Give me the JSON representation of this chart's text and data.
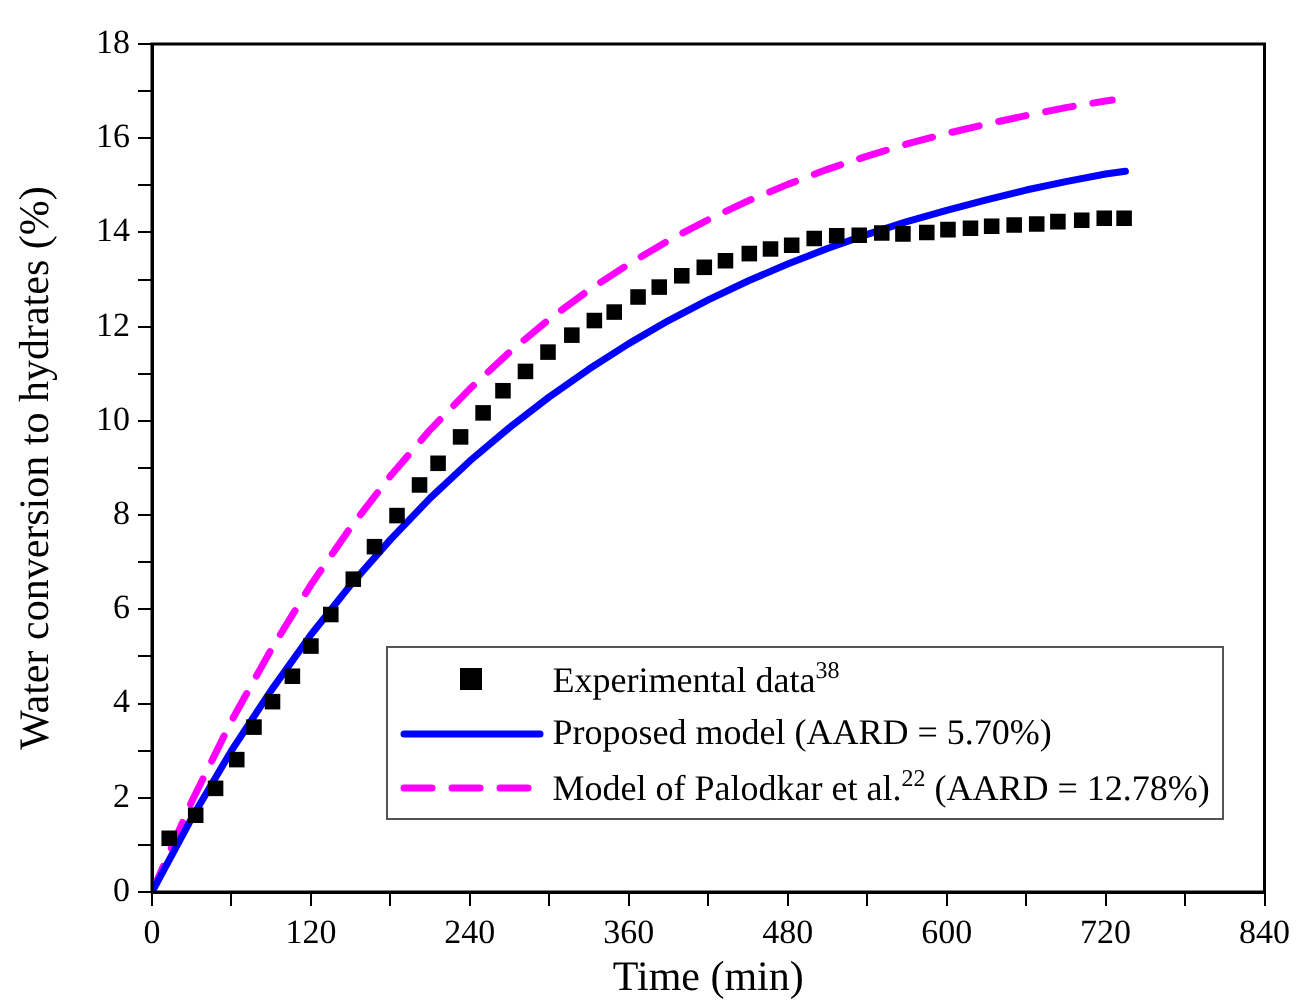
{
  "chart_data": {
    "type": "line",
    "xlabel": "Time (min)",
    "ylabel": "Water conversion to hydrates (%)",
    "xlim": [
      0,
      840
    ],
    "ylim": [
      0,
      18
    ],
    "xticks": [
      0,
      {
        "value": 60,
        "label": null
      },
      120,
      {
        "value": 180,
        "label": null
      },
      240,
      {
        "value": 300,
        "label": null
      },
      360,
      {
        "value": 420,
        "label": null
      },
      480,
      {
        "value": 540,
        "label": null
      },
      600,
      {
        "value": 660,
        "label": null
      },
      720,
      {
        "value": 780,
        "label": null
      },
      840
    ],
    "yticks": [
      0,
      {
        "value": 1,
        "label": null
      },
      2,
      {
        "value": 3,
        "label": null
      },
      4,
      {
        "value": 5,
        "label": null
      },
      6,
      {
        "value": 7,
        "label": null
      },
      8,
      {
        "value": 9,
        "label": null
      },
      10,
      {
        "value": 11,
        "label": null
      },
      12,
      {
        "value": 13,
        "label": null
      },
      14,
      {
        "value": 15,
        "label": null
      },
      16,
      {
        "value": 17,
        "label": null
      },
      18
    ],
    "grid": false,
    "legend": "bottom right",
    "series": [
      {
        "name": "Experimental data$^{38}$",
        "type": "scatter",
        "marker": "square",
        "color": "#000000",
        "x": [
          13,
          33,
          48,
          64,
          77,
          91,
          106,
          120,
          135,
          152,
          168,
          185,
          202,
          216,
          233,
          250,
          265,
          282,
          299,
          317,
          334,
          349,
          367,
          383,
          400,
          417,
          433,
          451,
          467,
          483,
          500,
          517,
          534,
          551,
          567,
          585,
          601,
          618,
          634,
          651,
          668,
          684,
          702,
          719,
          734
        ],
        "values": [
          1.14,
          1.63,
          2.2,
          2.81,
          3.5,
          4.04,
          4.58,
          5.22,
          5.89,
          6.64,
          7.33,
          7.99,
          8.64,
          9.1,
          9.66,
          10.17,
          10.64,
          11.05,
          11.46,
          11.82,
          12.13,
          12.31,
          12.63,
          12.84,
          13.08,
          13.26,
          13.4,
          13.55,
          13.65,
          13.73,
          13.87,
          13.93,
          13.94,
          13.99,
          13.97,
          14.0,
          14.06,
          14.09,
          14.13,
          14.16,
          14.18,
          14.23,
          14.26,
          14.3,
          14.3
        ]
      },
      {
        "name": "Proposed model (AARD = 5.70%)",
        "marker": "none",
        "line_style": "solid",
        "color": "#0000ff",
        "x": [
          0,
          30,
          60,
          90,
          120,
          150,
          180,
          210,
          240,
          270,
          300,
          330,
          360,
          390,
          420,
          450,
          480,
          510,
          540,
          570,
          600,
          630,
          660,
          690,
          720,
          735
        ],
        "values": [
          0,
          1.57,
          3.0,
          4.28,
          5.46,
          6.52,
          7.48,
          8.36,
          9.15,
          9.86,
          10.51,
          11.1,
          11.64,
          12.13,
          12.57,
          12.97,
          13.33,
          13.66,
          13.96,
          14.23,
          14.47,
          14.69,
          14.9,
          15.08,
          15.24,
          15.3
        ]
      },
      {
        "name": "Model of Palodkar et al.$^{22}$ (AARD = 12.78%)",
        "marker": "none",
        "line_style": "dashed",
        "color": "#ff00ff",
        "x": [
          0,
          30,
          60,
          90,
          120,
          150,
          180,
          210,
          240,
          270,
          300,
          330,
          360,
          390,
          420,
          450,
          480,
          510,
          540,
          570,
          600,
          630,
          660,
          690,
          720,
          725
        ],
        "values": [
          0,
          1.92,
          3.63,
          5.15,
          6.52,
          7.74,
          8.83,
          9.81,
          10.68,
          11.46,
          12.16,
          12.78,
          13.33,
          13.83,
          14.27,
          14.67,
          15.02,
          15.34,
          15.62,
          15.88,
          16.1,
          16.3,
          16.48,
          16.65,
          16.79,
          16.81
        ]
      }
    ]
  }
}
